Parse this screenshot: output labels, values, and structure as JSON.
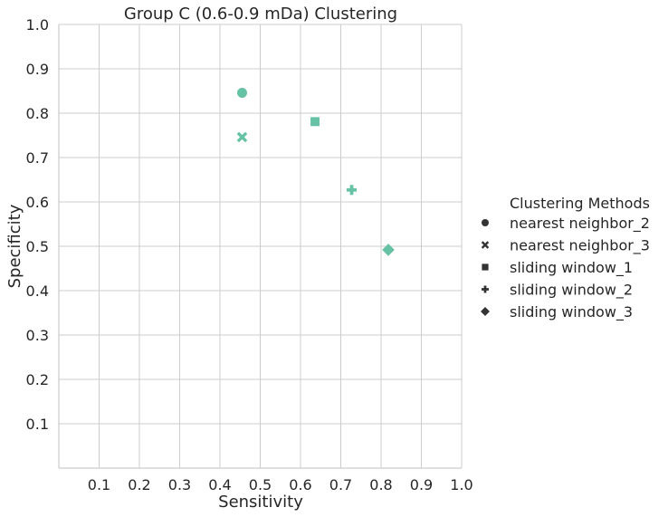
{
  "chart_data": {
    "type": "scatter",
    "title": "Group C (0.6-0.9 mDa) Clustering",
    "xlabel": "Sensitivity",
    "ylabel": "Specificity",
    "xlim": [
      0.0,
      1.0
    ],
    "ylim": [
      0.0,
      1.0
    ],
    "xticks": [
      "0.1",
      "0.2",
      "0.3",
      "0.4",
      "0.5",
      "0.6",
      "0.7",
      "0.8",
      "0.9",
      "1.0"
    ],
    "yticks": [
      "0.1",
      "0.2",
      "0.3",
      "0.4",
      "0.5",
      "0.6",
      "0.7",
      "0.8",
      "0.9",
      "1.0"
    ],
    "grid": true,
    "legend_title": "Clustering Methods",
    "legend_position": "right",
    "color": "#66c2a5",
    "series": [
      {
        "name": "nearest neighbor_2",
        "marker": "circle",
        "x": 0.455,
        "y": 0.846
      },
      {
        "name": "nearest neighbor_3",
        "marker": "x",
        "x": 0.455,
        "y": 0.746
      },
      {
        "name": "sliding window_1",
        "marker": "square",
        "x": 0.636,
        "y": 0.781
      },
      {
        "name": "sliding window_2",
        "marker": "plus",
        "x": 0.727,
        "y": 0.627
      },
      {
        "name": "sliding window_3",
        "marker": "diamond",
        "x": 0.818,
        "y": 0.492
      }
    ]
  }
}
